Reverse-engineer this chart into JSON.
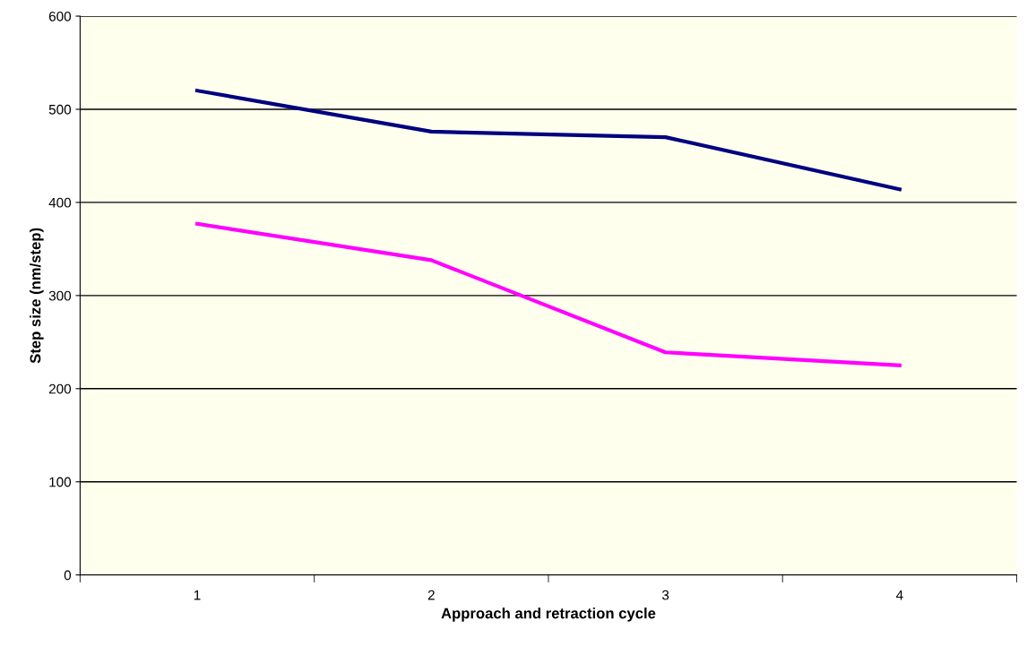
{
  "chart_data": {
    "type": "line",
    "xlabel": "Approach and retraction cycle",
    "ylabel": "Step size (nm/step)",
    "categories": [
      "1",
      "2",
      "3",
      "4"
    ],
    "series": [
      {
        "color": "#000080",
        "values": [
          520,
          476,
          470,
          414
        ]
      },
      {
        "color": "#ff00ff",
        "values": [
          377,
          338,
          239,
          225
        ]
      }
    ],
    "ylim": [
      0,
      600
    ],
    "yticks": [
      0,
      100,
      200,
      300,
      400,
      500,
      600
    ],
    "grid": "y",
    "legend": false,
    "marker": "none",
    "line_style": "solid"
  }
}
